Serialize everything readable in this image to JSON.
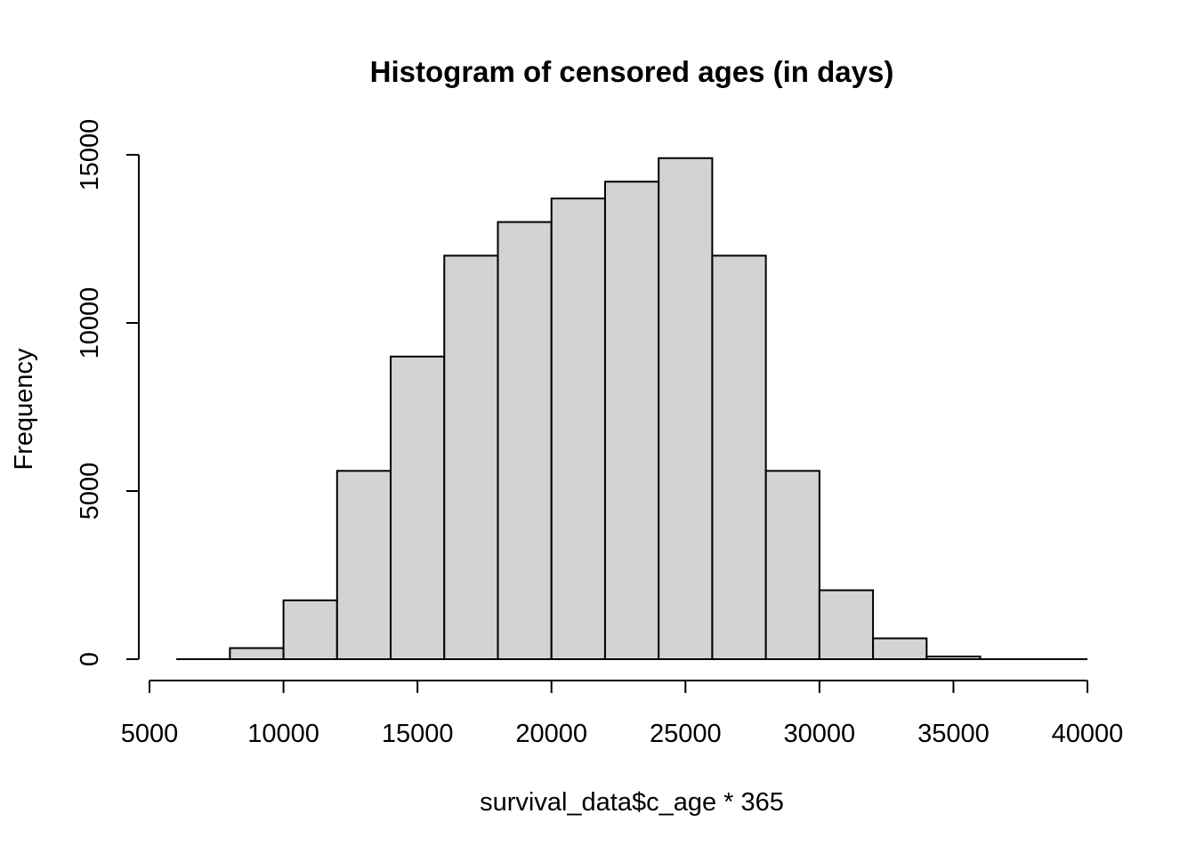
{
  "chart_data": {
    "type": "bar",
    "title": "Histogram of censored ages (in days)",
    "xlabel": "survival_data$c_age * 365",
    "ylabel": "Frequency",
    "xlim": [
      5000,
      40000
    ],
    "ylim": [
      0,
      15000
    ],
    "x_ticks": [
      5000,
      10000,
      15000,
      20000,
      25000,
      30000,
      35000,
      40000
    ],
    "y_ticks": [
      0,
      5000,
      10000,
      15000
    ],
    "bin_width": 2000,
    "bins": [
      {
        "start": 6000,
        "end": 8000,
        "count": 0
      },
      {
        "start": 8000,
        "end": 10000,
        "count": 330
      },
      {
        "start": 10000,
        "end": 12000,
        "count": 1750
      },
      {
        "start": 12000,
        "end": 14000,
        "count": 5600
      },
      {
        "start": 14000,
        "end": 16000,
        "count": 9000
      },
      {
        "start": 16000,
        "end": 18000,
        "count": 12000
      },
      {
        "start": 18000,
        "end": 20000,
        "count": 13000
      },
      {
        "start": 20000,
        "end": 22000,
        "count": 13700
      },
      {
        "start": 22000,
        "end": 24000,
        "count": 14200
      },
      {
        "start": 24000,
        "end": 26000,
        "count": 14900
      },
      {
        "start": 26000,
        "end": 28000,
        "count": 12000
      },
      {
        "start": 28000,
        "end": 30000,
        "count": 5600
      },
      {
        "start": 30000,
        "end": 32000,
        "count": 2050
      },
      {
        "start": 32000,
        "end": 34000,
        "count": 620
      },
      {
        "start": 34000,
        "end": 36000,
        "count": 80
      },
      {
        "start": 36000,
        "end": 38000,
        "count": 5
      },
      {
        "start": 38000,
        "end": 40000,
        "count": 0
      }
    ],
    "bar_fill": "#d3d3d3",
    "bar_stroke": "#000000",
    "grid": false,
    "legend": "none"
  }
}
